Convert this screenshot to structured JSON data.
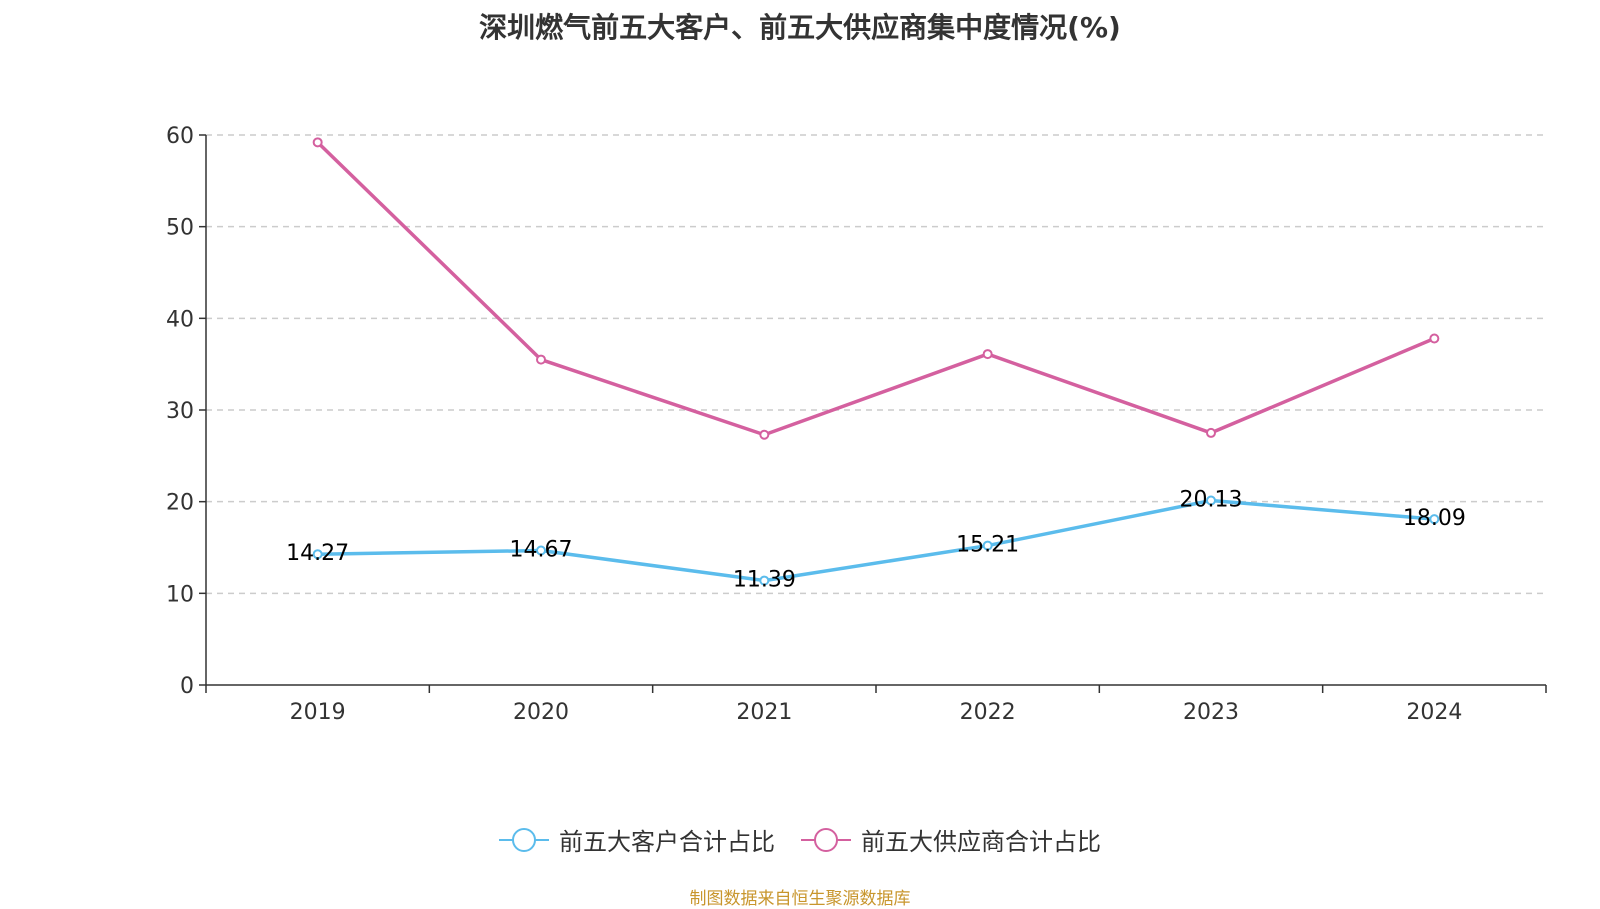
{
  "chart_data": {
    "type": "line",
    "title": "深圳燃气前五大客户、前五大供应商集中度情况(%)",
    "categories": [
      "2019",
      "2020",
      "2021",
      "2022",
      "2023",
      "2024"
    ],
    "ylim": [
      0,
      60
    ],
    "yticks": [
      "0",
      "10",
      "20",
      "30",
      "40",
      "50",
      "60"
    ],
    "grid": true,
    "legend_position": "bottom",
    "series": [
      {
        "name": "前五大客户合计占比",
        "values": [
          14.27,
          14.67,
          11.39,
          15.21,
          20.13,
          18.09
        ],
        "labels": [
          "14.27",
          "14.67",
          "11.39",
          "15.21",
          "20.13",
          "18.09"
        ],
        "color": "#5bbcec"
      },
      {
        "name": "前五大供应商合计占比",
        "values": [
          59.2,
          35.5,
          27.3,
          36.1,
          27.5,
          37.8
        ],
        "color": "#d4609f"
      }
    ]
  },
  "source_note": "制图数据来自恒生聚源数据库"
}
